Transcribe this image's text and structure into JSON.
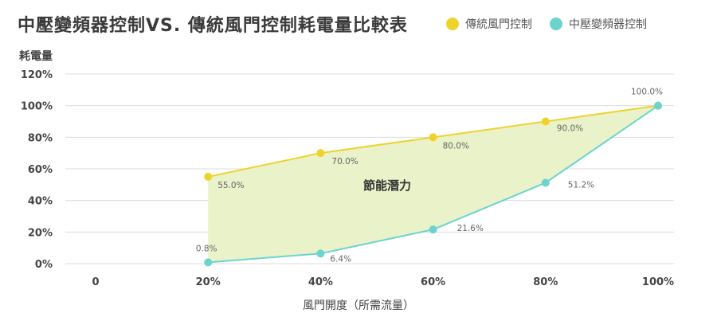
{
  "chart_data": {
    "type": "line",
    "title": "中壓變頻器控制VS. 傳統風門控制耗電量比較表",
    "ylabel": "耗電量",
    "xlabel": "風門開度（所需流量）",
    "x_ticks": [
      "0",
      "20%",
      "40%",
      "60%",
      "80%",
      "100%"
    ],
    "y_ticks": [
      "0%",
      "20%",
      "40%",
      "60%",
      "80%",
      "100%",
      "120%"
    ],
    "xlim": [
      0,
      100
    ],
    "ylim": [
      0,
      120
    ],
    "grid": true,
    "legend": "top-right",
    "annotation": "節能潛力",
    "series": [
      {
        "name": "傳統風門控制",
        "color": "#f0d22c",
        "x": [
          20,
          40,
          60,
          80,
          100
        ],
        "values": [
          55.0,
          70.0,
          80.0,
          90.0,
          100.0
        ],
        "labels": [
          "55.0%",
          "70.0%",
          "80.0%",
          "90.0%",
          "100.0%"
        ]
      },
      {
        "name": "中壓變頻器控制",
        "color": "#6dd3cf",
        "x": [
          20,
          40,
          60,
          80,
          100
        ],
        "values": [
          0.8,
          6.4,
          21.6,
          51.2,
          100.0
        ],
        "labels": [
          "0.8%",
          "6.4%",
          "21.6%",
          "51.2%"
        ]
      }
    ],
    "fill_between_color": "#e9f2c9"
  }
}
